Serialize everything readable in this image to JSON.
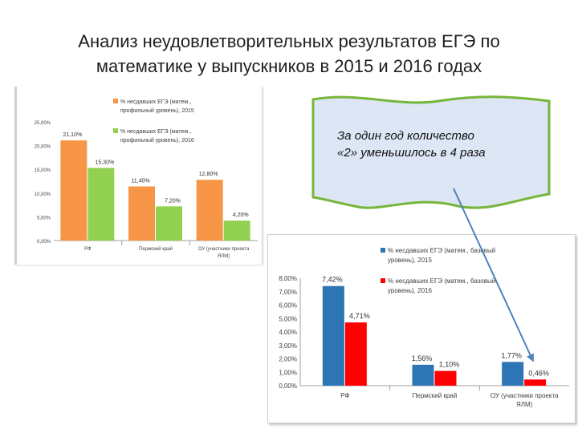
{
  "slide": {
    "title_line1": "Анализ  неудовлетворительных результатов ЕГЭ по",
    "title_line2": "математике у выпускников в 2015 и 2016 годах"
  },
  "callout": {
    "line1": "За один год количество",
    "line2": "«2» уменьшилось в 4 раза"
  },
  "colors": {
    "chart1_2015": "#f79646",
    "chart1_2016": "#92d050",
    "chart2_2015": "#2e75b6",
    "chart2_2016": "#ff0000",
    "callout_fill": "#dde6f5",
    "callout_border": "#76b63a",
    "arrow": "#4f81bd"
  },
  "chart_data": [
    {
      "type": "bar",
      "categories": [
        "РФ",
        "Пермский край",
        "ОУ (участники проекта ЯЛМ)"
      ],
      "series": [
        {
          "name": "% несдавших ЕГЭ (матем., профильный уровень), 2015",
          "values": [
            21.1,
            11.4,
            12.8
          ],
          "labels": [
            "21,10%",
            "11,40%",
            "12,80%"
          ]
        },
        {
          "name": "% несдавших ЕГЭ (матем., профильный уровень), 2016",
          "values": [
            15.3,
            7.2,
            4.2
          ],
          "labels": [
            "15,30%",
            "7,20%",
            "4,20%"
          ]
        }
      ],
      "ylim": [
        0,
        25
      ],
      "yticks": [
        0,
        5,
        10,
        15,
        20,
        25
      ],
      "ytick_labels": [
        "0,00%",
        "5,00%",
        "10,00%",
        "15,00%",
        "20,00%",
        "25,00%"
      ],
      "legend": "top"
    },
    {
      "type": "bar",
      "categories": [
        "РФ",
        "Пермский край",
        "ОУ (участники проекта ЯЛМ)"
      ],
      "series": [
        {
          "name": "% несдавших ЕГЭ (матем., базовый уровень), 2015",
          "values": [
            7.42,
            1.56,
            1.77
          ],
          "labels": [
            "7,42%",
            "1,56%",
            "1,77%"
          ]
        },
        {
          "name": "% несдавших ЕГЭ (матем., базовый уровень), 2016",
          "values": [
            4.71,
            1.1,
            0.46
          ],
          "labels": [
            "4,71%",
            "1,10%",
            "0,46%"
          ]
        }
      ],
      "ylim": [
        0,
        8
      ],
      "yticks": [
        0,
        1,
        2,
        3,
        4,
        5,
        6,
        7,
        8
      ],
      "ytick_labels": [
        "0,00%",
        "1,00%",
        "2,00%",
        "3,00%",
        "4,00%",
        "5,00%",
        "6,00%",
        "7,00%",
        "8,00%"
      ],
      "legend": "top-right"
    }
  ]
}
